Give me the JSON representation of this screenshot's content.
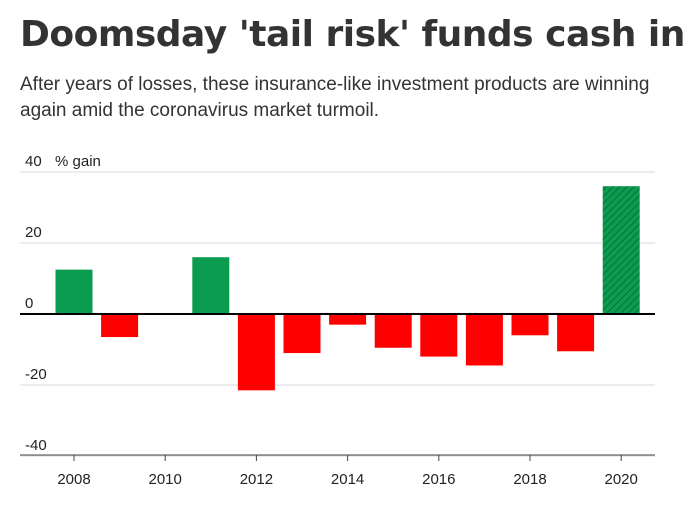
{
  "header": {
    "title": "Doomsday 'tail risk' funds cash in",
    "subtitle": "After years of losses, these insurance-like investment products are winning again amid the coronavirus market turmoil."
  },
  "colors": {
    "positive": "#0c9c4f",
    "negative": "#ff0000",
    "grid": "#d9d9d9",
    "zero_line": "#000000",
    "text": "#333333"
  },
  "chart_data": {
    "type": "bar",
    "title": "Doomsday 'tail risk' funds cash in",
    "ylabel": "% gain",
    "xlabel": "",
    "ylim": [
      -40,
      40
    ],
    "y_ticks": [
      "40",
      "20",
      "0",
      "-20",
      "-40"
    ],
    "y_tick_values": [
      40,
      20,
      0,
      -20,
      -40
    ],
    "x_ticks": [
      "2008",
      "2010",
      "2012",
      "2014",
      "2016",
      "2018",
      "2020"
    ],
    "x_tick_values": [
      2008,
      2010,
      2012,
      2014,
      2016,
      2018,
      2020
    ],
    "categories": [
      2008,
      2009,
      2010,
      2011,
      2012,
      2013,
      2014,
      2015,
      2016,
      2017,
      2018,
      2019,
      2020
    ],
    "values": [
      12.5,
      -6.5,
      0,
      16,
      -21.5,
      -11,
      -3,
      -9.5,
      -12,
      -14.5,
      -6,
      -10.5,
      36
    ],
    "hatched_year": 2020,
    "grid": true,
    "legend": null
  }
}
